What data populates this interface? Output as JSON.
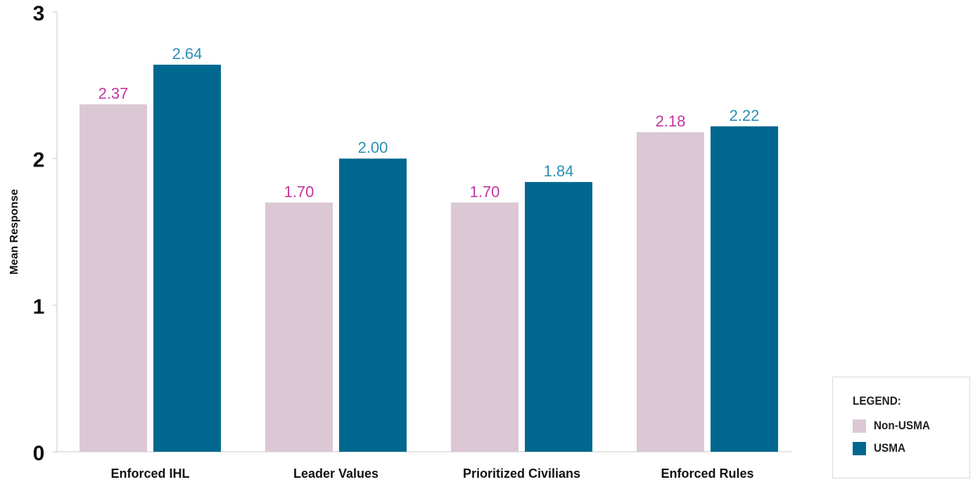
{
  "chart_data": {
    "type": "bar",
    "ylabel": "Mean Response",
    "xlabel": "",
    "ylim": [
      0,
      3
    ],
    "yticks": [
      "0",
      "1",
      "2",
      "3"
    ],
    "categories": [
      "Enforced IHL",
      "Leader Values",
      "Prioritized Civilians",
      "Enforced Rules"
    ],
    "series": [
      {
        "name": "Non-USMA",
        "values": [
          2.37,
          1.7,
          1.7,
          2.18
        ],
        "labels": [
          "2.37",
          "1.70",
          "1.70",
          "2.18"
        ],
        "color": "#dbc8d4",
        "label_color": "#c2359e"
      },
      {
        "name": "USMA",
        "values": [
          2.64,
          2.0,
          1.84,
          2.22
        ],
        "labels": [
          "2.64",
          "2.00",
          "1.84",
          "2.22"
        ],
        "color": "#00688f",
        "label_color": "#2a8fb4"
      }
    ],
    "grid": false,
    "legend": {
      "title": "LEGEND:",
      "placement": "bottom-right"
    }
  }
}
